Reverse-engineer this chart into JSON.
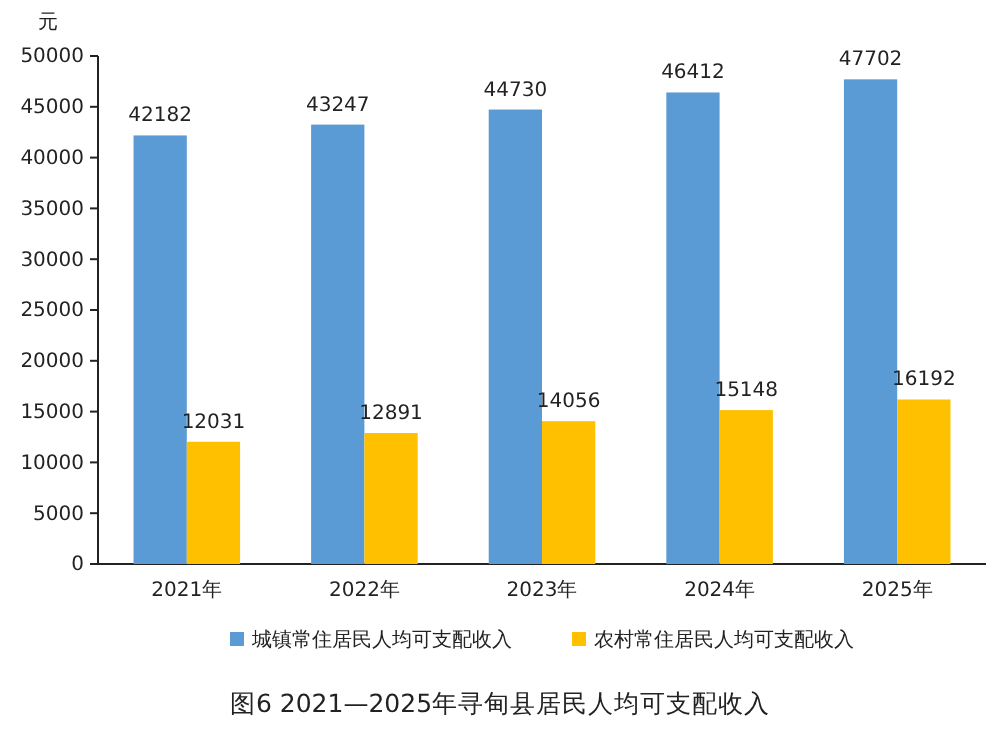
{
  "chart_data": {
    "type": "bar",
    "title": "图6 2021—2025年寻甸县居民人均可支配收入",
    "ylabel": "元",
    "categories": [
      "2021年",
      "2022年",
      "2023年",
      "2024年",
      "2025年"
    ],
    "series": [
      {
        "name": "城镇常住居民人均可支配收入",
        "color": "#5b9bd5",
        "values": [
          42182,
          43247,
          44730,
          46412,
          47702
        ]
      },
      {
        "name": "农村常住居民人均可支配收入",
        "color": "#ffc000",
        "values": [
          12031,
          12891,
          14056,
          15148,
          16192
        ]
      }
    ],
    "ylim": [
      0,
      50000
    ],
    "yticks": [
      0,
      5000,
      10000,
      15000,
      20000,
      25000,
      30000,
      35000,
      40000,
      45000,
      50000
    ],
    "data_labels": true,
    "legend": "bottom",
    "grid": false
  }
}
